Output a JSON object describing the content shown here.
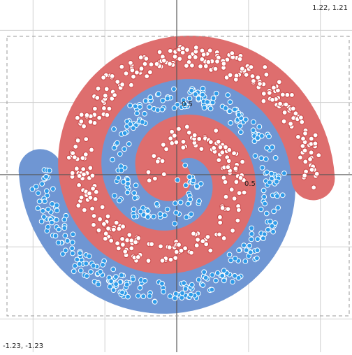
{
  "colors": {
    "blue_region": "#6f96d3",
    "red_region": "#de6e6e",
    "blue_point": "#2f9be8",
    "red_point": "#ffffff",
    "red_point_stroke": "#c94b4b",
    "grid": "#cfcfcf",
    "axis": "#555555"
  },
  "chart_data": {
    "type": "scatter",
    "title": "",
    "xlabel": "",
    "ylabel": "",
    "xlim": [
      -1.23,
      1.22
    ],
    "ylim": [
      -1.23,
      1.21
    ],
    "grid": true,
    "corner_labels": {
      "top_right": "1.22, 1.21",
      "bottom_left": "-1.23, -1.23"
    },
    "tick_labels": {
      "y_half": "0.5",
      "x_half": "0.5"
    },
    "series": [
      {
        "class": "blue",
        "spiral": {
          "turns": 1.6,
          "r_min": 0.06,
          "r_max": 0.95,
          "phase": 0.0,
          "n": 430
        }
      },
      {
        "class": "red",
        "spiral": {
          "turns": 1.6,
          "r_min": 0.06,
          "r_max": 0.95,
          "phase": 3.14159,
          "n": 430
        }
      }
    ]
  }
}
